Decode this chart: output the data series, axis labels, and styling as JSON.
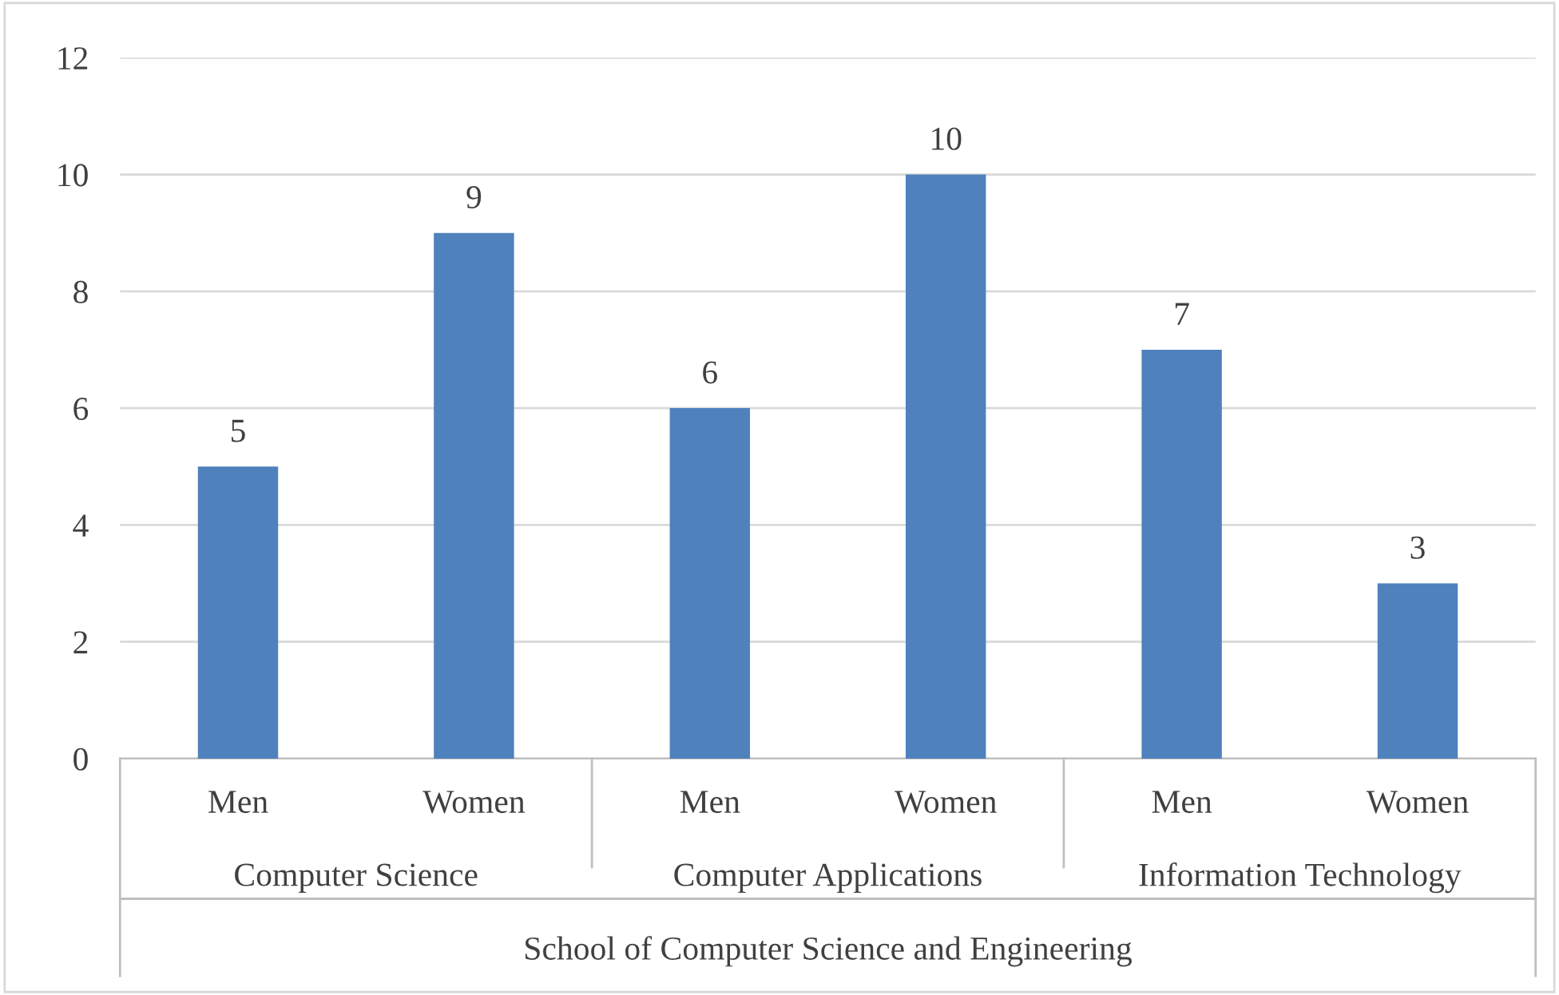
{
  "chart_data": {
    "type": "bar",
    "categories": [
      "Men",
      "Women",
      "Men",
      "Women",
      "Men",
      "Women"
    ],
    "values": [
      5,
      9,
      6,
      10,
      7,
      3
    ],
    "color": "#4f81bd",
    "ylim": [
      0,
      12
    ],
    "yticks": [
      0,
      2,
      4,
      6,
      8,
      10,
      12
    ],
    "grid": "y",
    "data_labels": true,
    "xlabel": "School of Computer Science and Engineering",
    "annotations": [
      "Computer Science",
      "Computer Applications",
      "Information Technology"
    ]
  }
}
